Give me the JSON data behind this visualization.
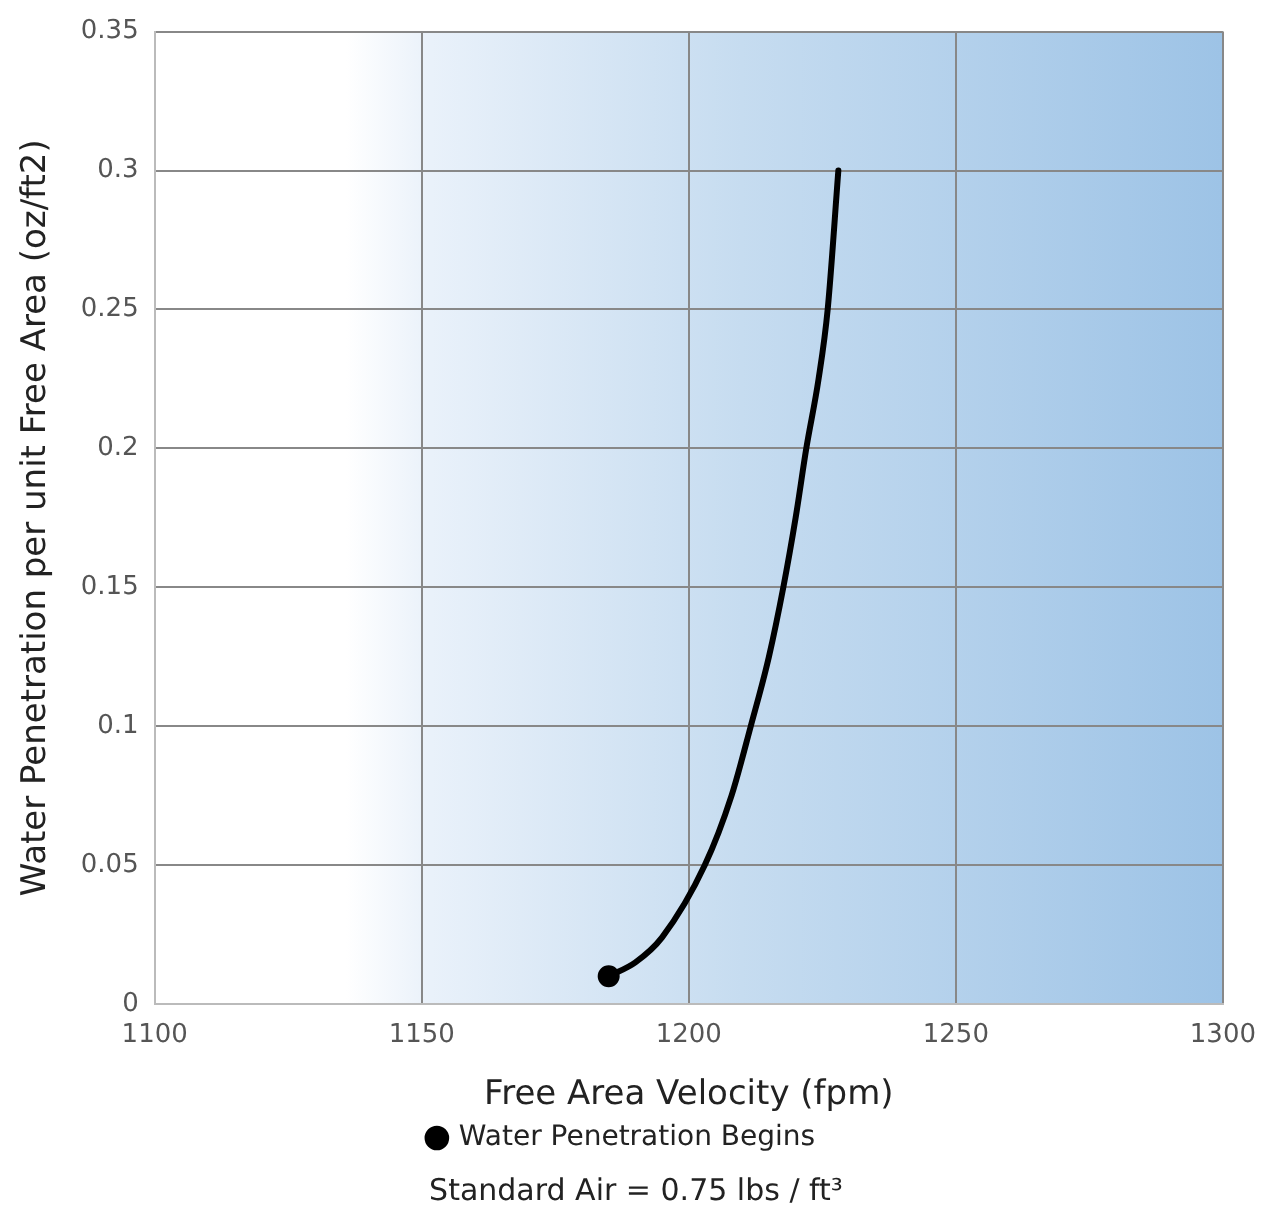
{
  "chart_data": {
    "type": "line",
    "xlabel": "Free Area Velocity (fpm)",
    "ylabel": "Water Penetration per unit Free Area (oz/ft2)",
    "series": [
      {
        "color": "#000000",
        "x": [
          1185,
          1190,
          1195,
          1203,
          1208,
          1211.6,
          1215,
          1217.7,
          1220,
          1222,
          1224.3,
          1226,
          1228
        ],
        "values": [
          0.01,
          0.015,
          0.024,
          0.05,
          0.075,
          0.1,
          0.125,
          0.15,
          0.175,
          0.2,
          0.225,
          0.25,
          0.3
        ]
      },
      {
        "type": "scatter",
        "name": "Water Penetration Begins",
        "color": "#000000",
        "x": [
          1185
        ],
        "values": [
          0.01
        ]
      }
    ],
    "xlim": [
      1100,
      1300
    ],
    "xticks": [
      1100,
      1150,
      1200,
      1250,
      1300
    ],
    "ylim": [
      0,
      0.35
    ],
    "yticks": [
      0,
      0.05,
      0.1,
      0.15,
      0.2,
      0.25,
      0.3,
      0.35
    ],
    "grid": true,
    "legend": "bottom",
    "annotations": [
      "Standard Air = 0.75 lbs / ft³"
    ]
  }
}
